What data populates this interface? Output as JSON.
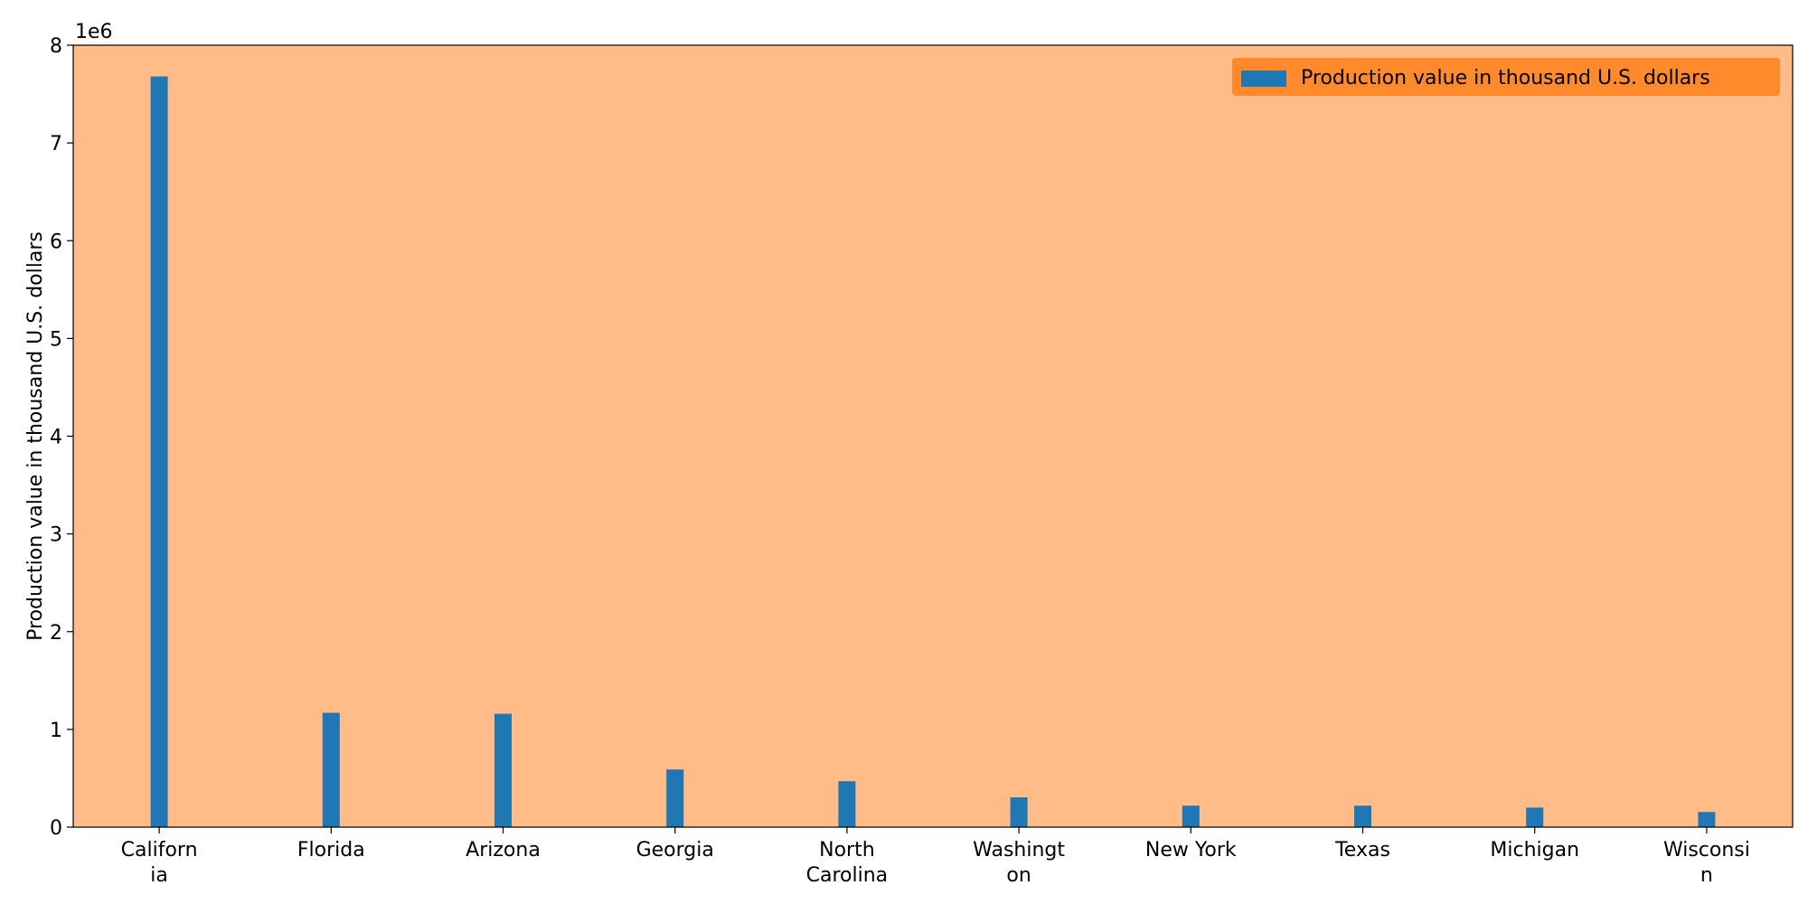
{
  "chart_data": {
    "type": "bar",
    "categories": [
      [
        "Californ",
        "ia"
      ],
      [
        "Florida"
      ],
      [
        "Arizona"
      ],
      [
        "Georgia"
      ],
      [
        "North",
        "Carolina"
      ],
      [
        "Washingt",
        "on"
      ],
      [
        "New York"
      ],
      [
        "Texas"
      ],
      [
        "Michigan"
      ],
      [
        "Wisconsi",
        "n"
      ]
    ],
    "series": [
      {
        "name": "Production value in thousand U.S. dollars",
        "values": [
          7680000,
          1170000,
          1160000,
          590000,
          470000,
          305000,
          220000,
          220000,
          200000,
          155000
        ]
      }
    ],
    "title": "",
    "xlabel": "",
    "ylabel": "Production value in thousand U.S. dollars",
    "ylim": [
      0,
      8000000
    ],
    "yticks": [
      0,
      1000000,
      2000000,
      3000000,
      4000000,
      5000000,
      6000000,
      7000000,
      8000000
    ],
    "ytick_labels": [
      "0",
      "1",
      "2",
      "3",
      "4",
      "5",
      "6",
      "7",
      "8"
    ],
    "y_offset_label": "1e6",
    "legend_placement": "top-right",
    "grid": false,
    "colors": {
      "bar": "#1f77b4",
      "plot_background": "#ffbb88",
      "legend_background": "#ff8a2b",
      "axis": "#000000"
    }
  }
}
